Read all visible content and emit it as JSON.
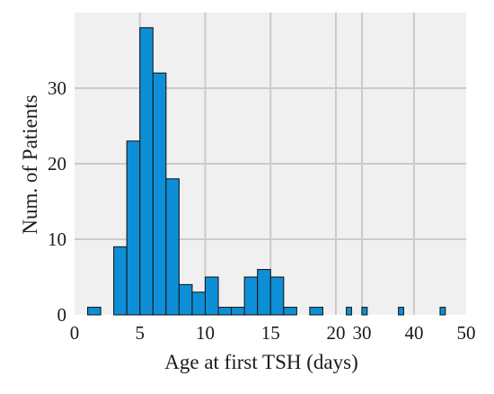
{
  "chart_data": {
    "type": "bar",
    "title": "",
    "xlabel": "Age at first TSH (days)",
    "ylabel": "Num. of Patients",
    "xlim": [
      0,
      50
    ],
    "ylim": [
      0,
      40
    ],
    "x_axis_break": [
      20,
      25
    ],
    "bin_width": 1,
    "xticks": [
      0,
      5,
      10,
      15,
      20,
      30,
      40,
      50
    ],
    "yticks": [
      0,
      10,
      20,
      30
    ],
    "grid": true,
    "grid_color": "#cbcbcb",
    "background_color": "#f0f0f0",
    "bar_color": "#0d8fd8",
    "bar_edge_color": "#1a1a1a",
    "bins": [
      {
        "x_start": 1,
        "value": 1
      },
      {
        "x_start": 3,
        "value": 9
      },
      {
        "x_start": 4,
        "value": 23
      },
      {
        "x_start": 5,
        "value": 38
      },
      {
        "x_start": 6,
        "value": 32
      },
      {
        "x_start": 7,
        "value": 18
      },
      {
        "x_start": 8,
        "value": 4
      },
      {
        "x_start": 9,
        "value": 3
      },
      {
        "x_start": 10,
        "value": 5
      },
      {
        "x_start": 11,
        "value": 1
      },
      {
        "x_start": 12,
        "value": 1
      },
      {
        "x_start": 13,
        "value": 5
      },
      {
        "x_start": 14,
        "value": 6
      },
      {
        "x_start": 15,
        "value": 5
      },
      {
        "x_start": 16,
        "value": 1
      },
      {
        "x_start": 18,
        "value": 1
      },
      {
        "x_start": 27,
        "value": 1
      },
      {
        "x_start": 30,
        "value": 1
      },
      {
        "x_start": 37,
        "value": 1
      },
      {
        "x_start": 45,
        "value": 1
      }
    ]
  }
}
